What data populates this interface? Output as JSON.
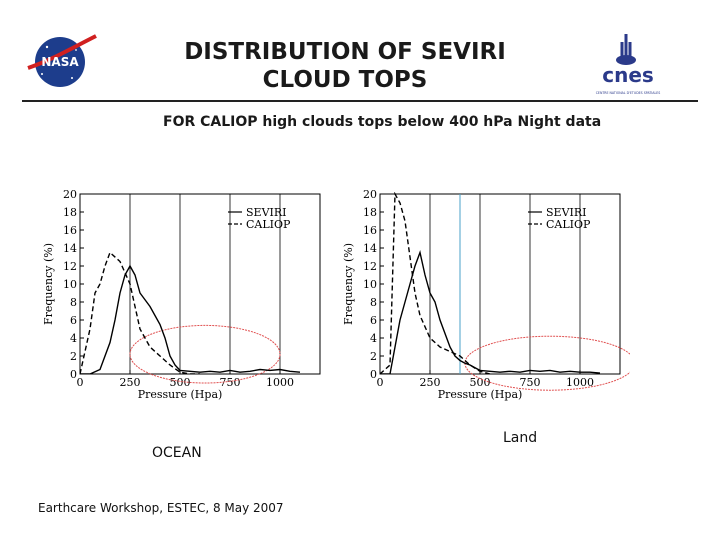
{
  "header": {
    "title_line1": "DISTRIBUTION OF SEVIRI",
    "title_line2": "CLOUD TOPS",
    "subtitle": "FOR CALIOP high clouds tops below 400 hPa Night data",
    "logo_left_text": "NASA",
    "logo_right_text": "cnes",
    "logo_right_tagline": "CENTRE NATIONAL D'ETUDES SPATIALES"
  },
  "footer": {
    "text": "Earthcare Workshop, ESTEC, 8 May 2007"
  },
  "colors": {
    "annotation_ellipse": "#e05050",
    "reference_line": "#4aa0c8",
    "series": "#000000"
  },
  "chart_data": [
    {
      "type": "line",
      "caption": "OCEAN",
      "xlabel": "Pressure (Hpa)",
      "ylabel": "Frequency (%)",
      "xlim": [
        0,
        1200
      ],
      "ylim": [
        0,
        20
      ],
      "xticks": [
        "0",
        "250",
        "500",
        "750",
        "1000"
      ],
      "yticks": [
        "0",
        "2",
        "4",
        "6",
        "8",
        "10",
        "12",
        "14",
        "16",
        "18",
        "20"
      ],
      "vertical_lines": [
        250,
        500,
        750,
        1000
      ],
      "legend_position": "top-right",
      "series": [
        {
          "name": "SEVIRI",
          "style": "solid",
          "x": [
            0,
            50,
            100,
            150,
            175,
            200,
            225,
            250,
            275,
            300,
            350,
            400,
            425,
            450,
            475,
            500,
            550,
            600,
            650,
            700,
            750,
            800,
            850,
            900,
            950,
            1000,
            1050,
            1100
          ],
          "y": [
            0,
            0,
            0.5,
            3.5,
            6,
            9,
            11,
            12,
            11,
            9,
            7.5,
            5.5,
            4,
            2,
            1,
            0.4,
            0.3,
            0.2,
            0.3,
            0.2,
            0.4,
            0.2,
            0.3,
            0.5,
            0.4,
            0.5,
            0.3,
            0.2
          ]
        },
        {
          "name": "CALIOP",
          "style": "dashed",
          "x": [
            0,
            50,
            75,
            100,
            125,
            150,
            200,
            250,
            300,
            350,
            400,
            450,
            500,
            550,
            600
          ],
          "y": [
            0,
            5,
            9,
            10,
            12,
            13.5,
            12.5,
            10,
            5,
            3,
            2,
            1,
            0.2,
            0,
            0
          ]
        }
      ],
      "annotation": {
        "type": "ellipse",
        "center": [
          625,
          2.2
        ],
        "rx": 375,
        "ry": 3.2
      }
    },
    {
      "type": "line",
      "caption": "Land",
      "xlabel": "Pressure (Hpa)",
      "ylabel": "Frequency (%)",
      "xlim": [
        0,
        1200
      ],
      "ylim": [
        0,
        20
      ],
      "xticks": [
        "0",
        "250",
        "500",
        "750",
        "1000"
      ],
      "yticks": [
        "0",
        "2",
        "4",
        "6",
        "8",
        "10",
        "12",
        "14",
        "16",
        "18",
        "20"
      ],
      "vertical_lines": [
        250,
        500,
        750,
        1000
      ],
      "reference_line": 400,
      "legend_position": "top-right",
      "series": [
        {
          "name": "SEVIRI",
          "style": "solid",
          "x": [
            0,
            50,
            75,
            100,
            125,
            150,
            175,
            200,
            225,
            250,
            275,
            300,
            325,
            350,
            375,
            400,
            425,
            450,
            475,
            500,
            550,
            600,
            650,
            700,
            750,
            800,
            850,
            900,
            950,
            1000,
            1050,
            1100
          ],
          "y": [
            0,
            0,
            3,
            6,
            8,
            10,
            12,
            13.5,
            11,
            9,
            8,
            6,
            4.5,
            3,
            2,
            1.5,
            1.2,
            1,
            0.7,
            0.4,
            0.3,
            0.2,
            0.3,
            0.2,
            0.4,
            0.3,
            0.4,
            0.2,
            0.3,
            0.2,
            0.2,
            0.1
          ]
        },
        {
          "name": "CALIOP",
          "style": "dashed",
          "x": [
            0,
            50,
            75,
            100,
            125,
            150,
            175,
            200,
            250,
            300,
            350,
            400,
            450,
            500,
            550
          ],
          "y": [
            0,
            1,
            20,
            19,
            17,
            13,
            9,
            6.5,
            4,
            3,
            2.5,
            2,
            1,
            0.3,
            0
          ]
        }
      ],
      "annotation": {
        "type": "ellipse",
        "center": [
          850,
          1.2
        ],
        "rx": 425,
        "ry": 3
      }
    }
  ]
}
